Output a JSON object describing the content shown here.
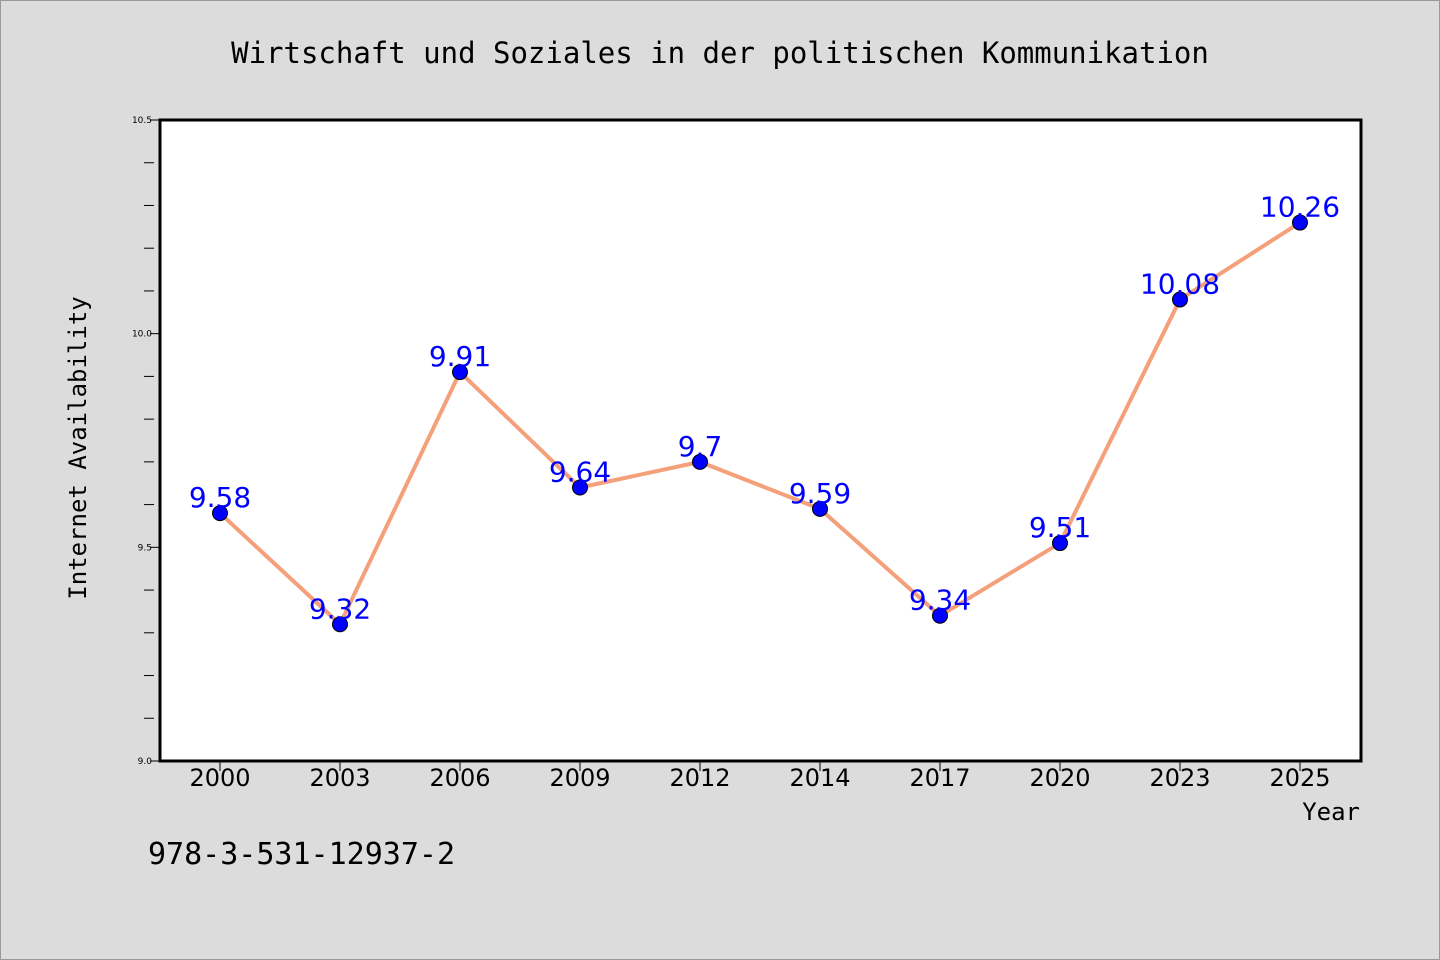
{
  "chart_data": {
    "type": "line",
    "title": "Wirtschaft und Soziales in der politischen Kommunikation",
    "xlabel": "Year",
    "ylabel": "Internet Availability",
    "categories": [
      "2000",
      "2003",
      "2006",
      "2009",
      "2012",
      "2014",
      "2017",
      "2020",
      "2023",
      "2025"
    ],
    "series": [
      {
        "values": [
          9.58,
          9.32,
          9.91,
          9.64,
          9.7,
          9.59,
          9.34,
          9.51,
          10.08,
          10.26
        ],
        "labels": [
          "9.58",
          "9.32",
          "9.91",
          "9.64",
          "9.7",
          "9.59",
          "9.34",
          "9.51",
          "10.08",
          "10.26"
        ]
      }
    ],
    "ylim": [
      9.0,
      10.5
    ],
    "yticks": [
      "9.0",
      "9.5",
      "10.0",
      "10.5"
    ],
    "grid": false,
    "colors": {
      "line": "#f4a07a",
      "marker": "#0000ff",
      "label": "#0000ff",
      "background": "#dcdcdc",
      "plot_background": "#ffffff"
    }
  },
  "footer": {
    "isbn": "978-3-531-12937-2"
  }
}
